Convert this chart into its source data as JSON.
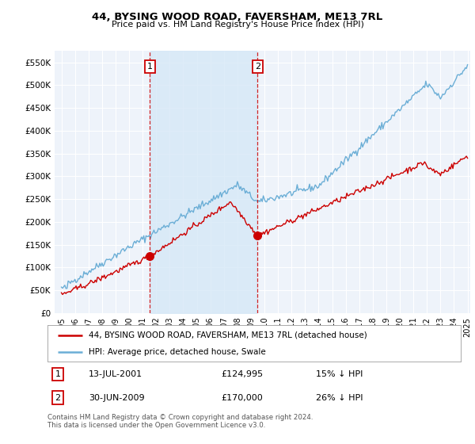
{
  "title": "44, BYSING WOOD ROAD, FAVERSHAM, ME13 7RL",
  "subtitle": "Price paid vs. HM Land Registry's House Price Index (HPI)",
  "ylim": [
    0,
    575000
  ],
  "yticks": [
    0,
    50000,
    100000,
    150000,
    200000,
    250000,
    300000,
    350000,
    400000,
    450000,
    500000,
    550000
  ],
  "ytick_labels": [
    "£0",
    "£50K",
    "£100K",
    "£150K",
    "£200K",
    "£250K",
    "£300K",
    "£350K",
    "£400K",
    "£450K",
    "£500K",
    "£550K"
  ],
  "sale1_date": 2001.54,
  "sale1_price": 124995,
  "sale2_date": 2009.49,
  "sale2_price": 170000,
  "hpi_color": "#6baed6",
  "price_color": "#cc0000",
  "vline_color": "#cc0000",
  "shade_color": "#d6e8f7",
  "legend_line1": "44, BYSING WOOD ROAD, FAVERSHAM, ME13 7RL (detached house)",
  "legend_line2": "HPI: Average price, detached house, Swale",
  "table_row1": [
    "1",
    "13-JUL-2001",
    "£124,995",
    "15% ↓ HPI"
  ],
  "table_row2": [
    "2",
    "30-JUN-2009",
    "£170,000",
    "26% ↓ HPI"
  ],
  "footnote": "Contains HM Land Registry data © Crown copyright and database right 2024.\nThis data is licensed under the Open Government Licence v3.0.",
  "bg_color": "#ffffff",
  "plot_bg_color": "#eef3fa",
  "grid_color": "#ffffff"
}
